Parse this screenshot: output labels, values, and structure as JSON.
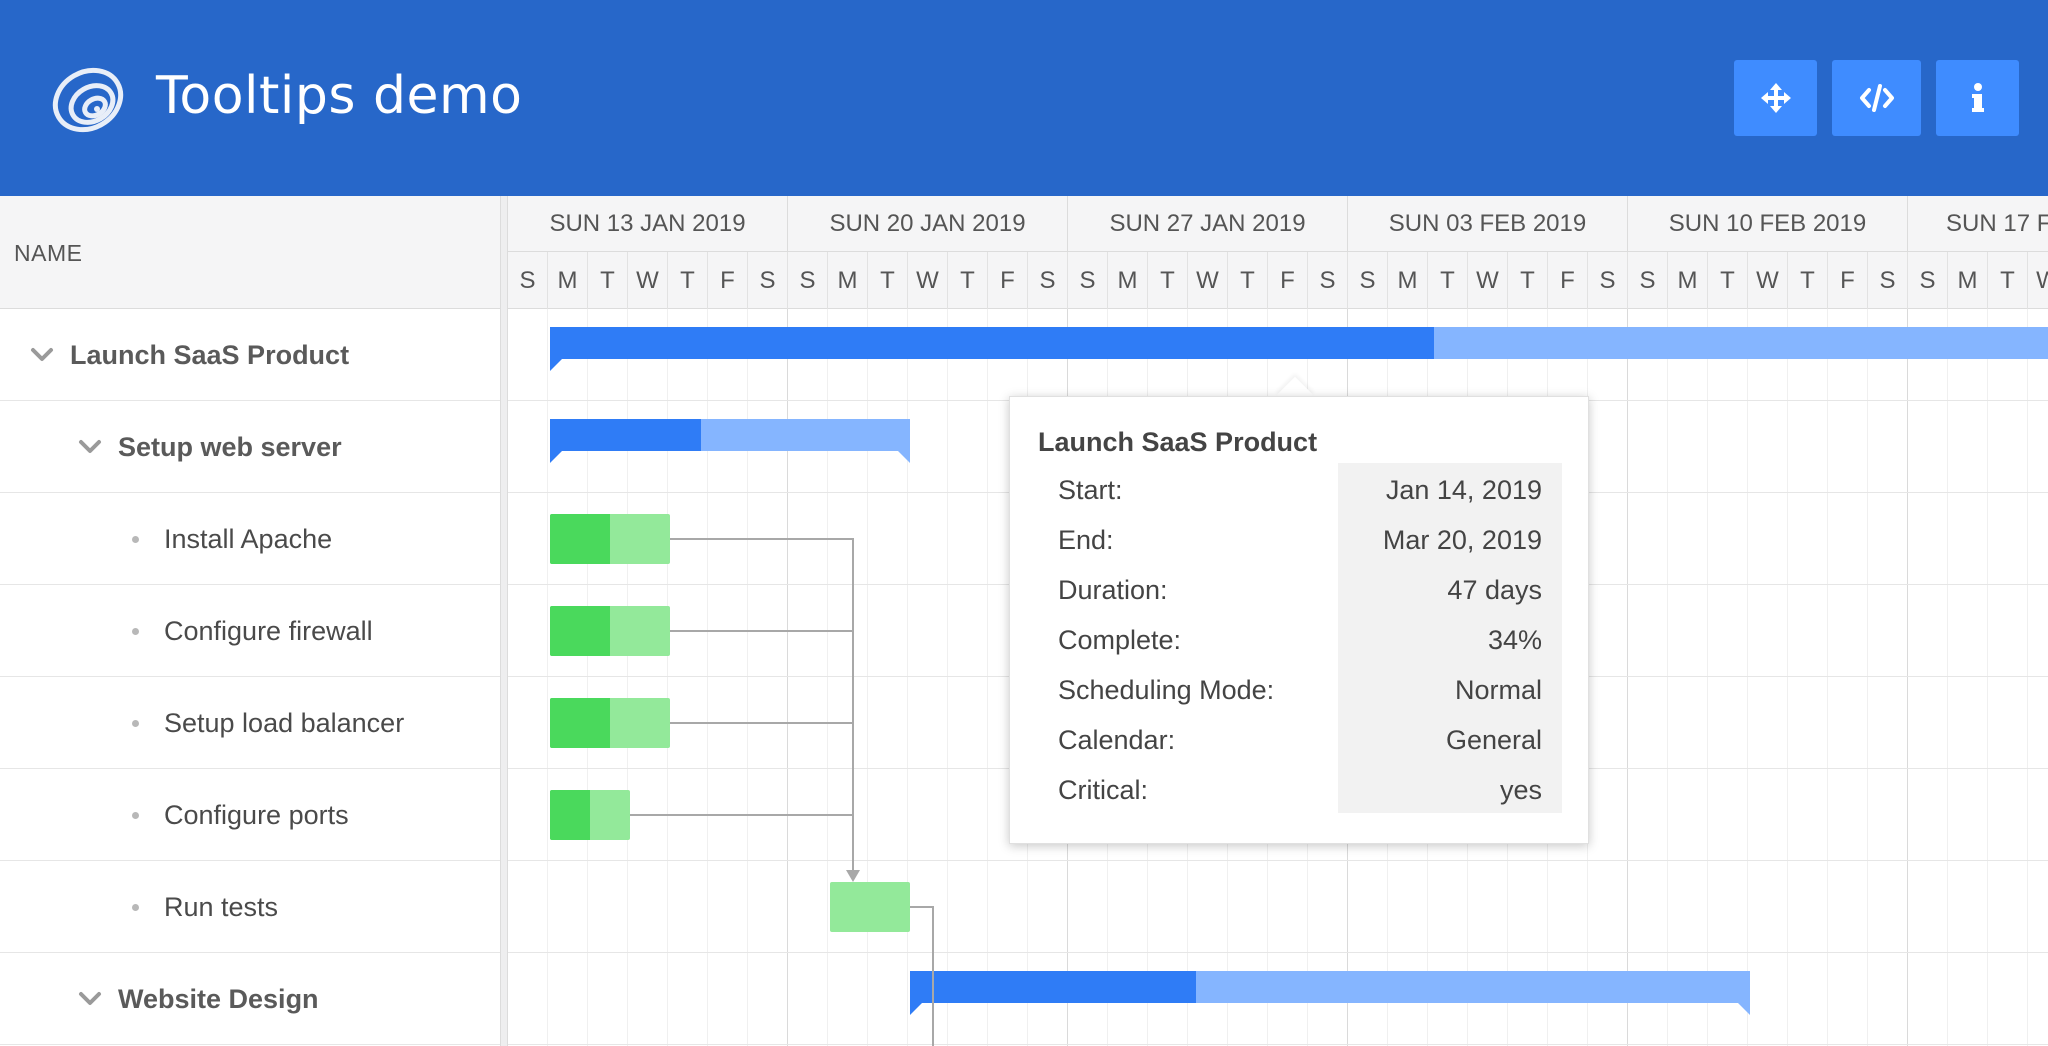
{
  "header": {
    "title": "Tooltips demo",
    "buttons": [
      {
        "name": "fullscreen-button",
        "icon": "move-arrows-icon"
      },
      {
        "name": "code-button",
        "icon": "code-icon"
      },
      {
        "name": "info-button",
        "icon": "info-icon"
      }
    ],
    "colors": {
      "background": "#2767c9",
      "button": "#3f8cff"
    }
  },
  "grid": {
    "column_header": "NAME",
    "rows": [
      {
        "name": "Launch SaaS Product",
        "type": "parent",
        "level": 0,
        "expanded": true
      },
      {
        "name": "Setup web server",
        "type": "parent",
        "level": 1,
        "expanded": true
      },
      {
        "name": "Install Apache",
        "type": "leaf",
        "level": 2
      },
      {
        "name": "Configure firewall",
        "type": "leaf",
        "level": 2
      },
      {
        "name": "Setup load balancer",
        "type": "leaf",
        "level": 2
      },
      {
        "name": "Configure ports",
        "type": "leaf",
        "level": 2
      },
      {
        "name": "Run tests",
        "type": "leaf",
        "level": 2
      },
      {
        "name": "Website Design",
        "type": "parent",
        "level": 1,
        "expanded": true
      }
    ]
  },
  "timeline": {
    "weeks": [
      "SUN 13 JAN 2019",
      "SUN 20 JAN 2019",
      "SUN 27 JAN 2019",
      "SUN 03 FEB 2019",
      "SUN 10 FEB 2019",
      "SUN 17 F"
    ],
    "day_letters": [
      "S",
      "M",
      "T",
      "W",
      "T",
      "F",
      "S"
    ]
  },
  "tasks": [
    {
      "row": 0,
      "start_day": 1,
      "end_day": 66,
      "percent_done": 34,
      "kind": "parent"
    },
    {
      "row": 1,
      "start_day": 1,
      "end_day": 10,
      "percent_done": 42,
      "kind": "parent"
    },
    {
      "row": 2,
      "start_day": 1,
      "end_day": 4,
      "percent_done": 50,
      "kind": "leaf"
    },
    {
      "row": 3,
      "start_day": 1,
      "end_day": 4,
      "percent_done": 50,
      "kind": "leaf"
    },
    {
      "row": 4,
      "start_day": 1,
      "end_day": 4,
      "percent_done": 50,
      "kind": "leaf"
    },
    {
      "row": 5,
      "start_day": 1,
      "end_day": 3,
      "percent_done": 50,
      "kind": "leaf"
    },
    {
      "row": 6,
      "start_day": 8,
      "end_day": 10,
      "percent_done": 0,
      "kind": "leaf"
    },
    {
      "row": 7,
      "start_day": 10,
      "end_day": 31,
      "percent_done": 34,
      "kind": "parent"
    }
  ],
  "tooltip": {
    "title": "Launch SaaS Product",
    "rows": [
      {
        "key": "Start:",
        "value": "Jan 14, 2019"
      },
      {
        "key": "End:",
        "value": "Mar 20, 2019"
      },
      {
        "key": "Duration:",
        "value": "47 days"
      },
      {
        "key": "Complete:",
        "value": "34%"
      },
      {
        "key": "Scheduling Mode:",
        "value": "Normal"
      },
      {
        "key": "Calendar:",
        "value": "General"
      },
      {
        "key": "Critical:",
        "value": "yes"
      }
    ]
  }
}
